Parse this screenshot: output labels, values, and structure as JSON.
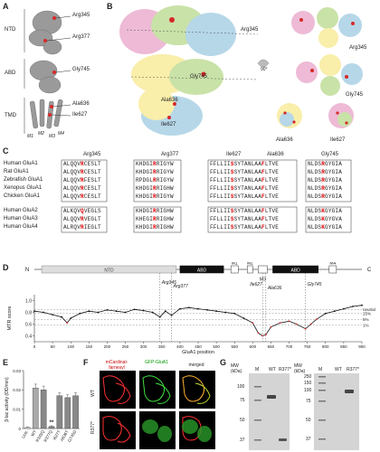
{
  "panels": {
    "A": {
      "letter": "A",
      "domains": [
        "NTD",
        "ABD",
        "TMD"
      ],
      "residues": [
        "Arg345",
        "Arg377",
        "Gly745",
        "Ala636",
        "Ile627"
      ],
      "helices": [
        "M1",
        "M2",
        "M3",
        "M4"
      ]
    },
    "B": {
      "letter": "B",
      "residues_left": [
        "Arg345",
        "Gly745",
        "Ala636",
        "Ile627"
      ],
      "rotation": "90°",
      "residues_right": [
        "Arg345",
        "Gly745",
        "Ala636",
        "Ile627"
      ]
    },
    "C": {
      "letter": "C",
      "columns": [
        "Arg345",
        "Arg377",
        "Ile627",
        "Ala636",
        "Gly745"
      ],
      "group1": [
        {
          "species": "Human GluA1",
          "seqs": [
            "ALQQVRCESLT",
            "KHDGIRRIGYW",
            "FFLLIISSYTANLAAFLTVE",
            "NLDSRGYGIA"
          ]
        },
        {
          "species": "Rat GluA1",
          "seqs": [
            "ALQQVRCESLT",
            "KHDGIRRIGYW",
            "FFLLIISSYTANLAAFLTVE",
            "NLDSRGYGIA"
          ]
        },
        {
          "species": "Zebrafish GluA1",
          "seqs": [
            "ALQQVRFESLT",
            "RPDGLRRIGYW",
            "FFLLIISSYTANLAAFLTVE",
            "NLDSRGYGIA"
          ]
        },
        {
          "species": "Xenopus GluA1",
          "seqs": [
            "ALQQVRCESLT",
            "KHDGIRRIGHW",
            "FFLLIISSYTANLAAFLTVE",
            "NLDSRGYGIA"
          ]
        },
        {
          "species": "Chicken GluA1",
          "seqs": [
            "ALQQVRCESLT",
            "KHDGIRRIGYW",
            "FFLLIISSYTANLAAFLTVE",
            "NLDSRGYGIA"
          ]
        }
      ],
      "group2": [
        {
          "species": "Human GluA2",
          "seqs": [
            "ALKQVQVEGLS",
            "KHDGIRRIGHW",
            "FFLLIISSYTANLAAFLTVE",
            "NLDSKGYGIA"
          ]
        },
        {
          "species": "Human GluA3",
          "seqs": [
            "ALQQVRVEGLT",
            "KHEGIRRIGHW",
            "FFLLIISSYTANLAAFLTVE",
            "NLDSKGYGVA"
          ]
        },
        {
          "species": "Human GluA4",
          "seqs": [
            "ALRQVRIEGLT",
            "KHDGIRRIGHW",
            "FFLLIISSYTANLAAFLTVE",
            "NLDSKGYGIA"
          ]
        }
      ]
    },
    "D": {
      "letter": "D",
      "n_term": "N",
      "c_term": "C",
      "domain_labels": [
        "NTD",
        "ABD",
        "ABD"
      ],
      "helix_labels": [
        "M1",
        "M2",
        "M3",
        "M4"
      ],
      "variant_labels": [
        "Arg345",
        "Arg377",
        "Ile627",
        "Ala636",
        "Gly745"
      ],
      "ylabel": "MTR score",
      "xlabel": "GluA1 position",
      "legend": [
        "neutral",
        "25%",
        "5%",
        "1%"
      ]
    },
    "E": {
      "letter": "E",
      "ylabel": "β-lac activity (OD/min)",
      "categories": [
        "Untr.",
        "WT",
        "R345Q",
        "R377Q",
        "I627T",
        "A636T",
        "G745D"
      ],
      "significance": "**"
    },
    "F": {
      "letter": "F",
      "col_labels": [
        "mCardinal-farnesyl",
        "GFP-GluA1",
        "merged"
      ],
      "row_labels": [
        "WT",
        "R377*"
      ]
    },
    "G": {
      "letter": "G",
      "mw_label": "MW (kDa)",
      "lanes1": [
        "M",
        "WT",
        "R377*"
      ],
      "lanes2": [
        "M",
        "WT",
        "R377*"
      ],
      "mw1": [
        "100",
        "75",
        "50",
        "37"
      ],
      "mw2": [
        "250",
        "150",
        "100",
        "75",
        "50",
        "37"
      ]
    }
  },
  "chart_data": [
    {
      "type": "line",
      "title": "",
      "xlabel": "GluA1 position",
      "ylabel": "MTR score",
      "xlim": [
        0,
        900
      ],
      "ylim": [
        0.3,
        1.1
      ],
      "x_ticks": [
        0,
        50,
        100,
        150,
        200,
        250,
        300,
        350,
        400,
        450,
        500,
        550,
        600,
        650,
        700,
        750,
        800,
        850,
        900
      ],
      "y_ticks": [
        0.4,
        0.6,
        0.8,
        1.0
      ],
      "thresholds": [
        {
          "name": "neutral",
          "value": 0.85
        },
        {
          "name": "25%",
          "value": 0.78
        },
        {
          "name": "5%",
          "value": 0.68
        },
        {
          "name": "1%",
          "value": 0.58
        }
      ],
      "x": [
        0,
        25,
        50,
        75,
        90,
        100,
        125,
        150,
        175,
        200,
        225,
        250,
        275,
        300,
        325,
        345,
        360,
        377,
        400,
        425,
        450,
        475,
        500,
        525,
        550,
        575,
        600,
        615,
        627,
        636,
        650,
        675,
        700,
        720,
        745,
        760,
        775,
        800,
        825,
        850,
        875,
        900
      ],
      "y": [
        0.82,
        0.8,
        0.76,
        0.72,
        0.62,
        0.7,
        0.78,
        0.82,
        0.8,
        0.84,
        0.82,
        0.8,
        0.85,
        0.83,
        0.8,
        0.72,
        0.82,
        0.75,
        0.86,
        0.88,
        0.86,
        0.84,
        0.82,
        0.8,
        0.78,
        0.7,
        0.62,
        0.45,
        0.4,
        0.42,
        0.55,
        0.62,
        0.65,
        0.6,
        0.52,
        0.6,
        0.68,
        0.78,
        0.82,
        0.86,
        0.9,
        0.92
      ]
    },
    {
      "type": "bar",
      "title": "",
      "ylabel": "β-lac activity (OD/min)",
      "categories": [
        "Untr.",
        "WT",
        "R345Q",
        "R377Q",
        "I627T",
        "A636T",
        "G745D"
      ],
      "values": [
        0.0005,
        0.021,
        0.02,
        0.001,
        0.017,
        0.016,
        0.017
      ],
      "errors": [
        0.0003,
        0.002,
        0.002,
        0.0004,
        0.0015,
        0.0015,
        0.0015
      ],
      "colors": [
        "#ffffff",
        "#aaaaaa",
        "#888888",
        "#888888",
        "#888888",
        "#888888",
        "#888888"
      ],
      "ylim": [
        0,
        0.03
      ],
      "y_ticks": [
        0,
        0.01,
        0.02,
        0.03
      ]
    }
  ]
}
